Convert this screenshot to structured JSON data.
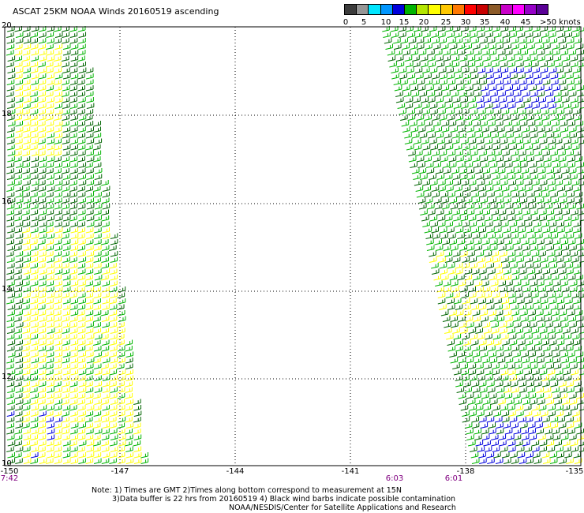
{
  "title": "ASCAT 25KM NOAA Winds 20160519 ascending",
  "colorbar": {
    "labels": [
      "0",
      "5",
      "10",
      "15",
      "20",
      "25",
      "30",
      "35",
      "40",
      "45",
      ">50 knots"
    ],
    "colors": [
      "#3c3c3c",
      "#969696",
      "#00e6ff",
      "#0096ff",
      "#0000dc",
      "#00b400",
      "#b4e600",
      "#ffff00",
      "#ffc800",
      "#ff7800",
      "#ff0000",
      "#c80000",
      "#8c5a28",
      "#c800c8",
      "#ff00ff",
      "#9600c8",
      "#5a0096"
    ]
  },
  "map": {
    "lon_range": [
      -150,
      -135
    ],
    "lat_range": [
      10,
      20
    ],
    "x_ticks": [
      "-150",
      "-147",
      "-144",
      "-141",
      "-138",
      "-135"
    ],
    "y_ticks": [
      "20",
      "18",
      "16",
      "14",
      "12",
      "10"
    ],
    "grid": true
  },
  "times": [
    {
      "label": "7:42"
    },
    {
      "label": "6:03"
    },
    {
      "label": "6:01"
    }
  ],
  "notes": {
    "line1": "Note: 1) Times are GMT 2)Times along bottom correspond to measurement at 15N",
    "line2": "3)Data buffer is 22 hrs from 20160519 4) Black wind barbs indicate possible contamination",
    "line3": "NOAA/NESDIS/Center for Satellite Applications and Research"
  },
  "barb_colors": {
    "dark_green": "#006400",
    "green": "#00b400",
    "yellow": "#ffff00",
    "blue": "#0000dc"
  }
}
